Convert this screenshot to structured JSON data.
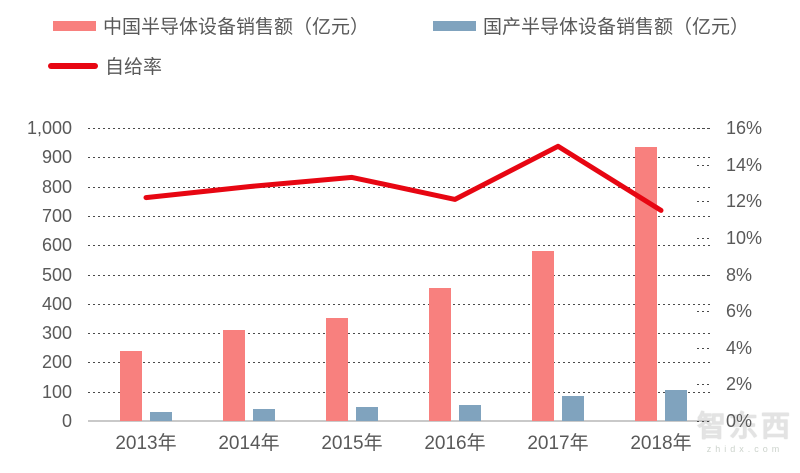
{
  "legend": {
    "position": "top-left",
    "items": [
      {
        "label": "中国半导体设备销售额（亿元）",
        "color": "#F8807E",
        "type": "bar"
      },
      {
        "label": "国产半导体设备销售额（亿元）",
        "color": "#80A3BE",
        "type": "bar"
      },
      {
        "label": "自给率",
        "color": "#E70612",
        "type": "line"
      }
    ]
  },
  "chart_data": {
    "type": "bar",
    "subtype": "grouped bars with overlaid line, dual y-axes",
    "categories": [
      "2013年",
      "2014年",
      "2015年",
      "2016年",
      "2017年",
      "2018年"
    ],
    "series": [
      {
        "name": "中国半导体设备销售额（亿元）",
        "type": "bar",
        "axis": "left",
        "color": "#F8807E",
        "values": [
          240,
          310,
          350,
          455,
          580,
          935
        ]
      },
      {
        "name": "国产半导体设备销售额（亿元）",
        "type": "bar",
        "axis": "left",
        "color": "#80A3BE",
        "values": [
          30,
          40,
          47,
          55,
          87,
          107
        ]
      },
      {
        "name": "自给率",
        "type": "line",
        "axis": "right",
        "color": "#E70612",
        "values": [
          12.2,
          12.8,
          13.3,
          12.1,
          15.0,
          11.5
        ],
        "unit": "%"
      }
    ],
    "left_axis": {
      "min": 0,
      "max": 1000,
      "step": 100,
      "tick_labels": [
        "0",
        "100",
        "200",
        "300",
        "400",
        "500",
        "600",
        "700",
        "800",
        "900",
        "1,000"
      ]
    },
    "right_axis": {
      "min": 0,
      "max": 16,
      "step": 2,
      "tick_labels": [
        "0%",
        "2%",
        "4%",
        "6%",
        "8%",
        "10%",
        "12%",
        "14%",
        "16%"
      ]
    },
    "grid": "horizontal dashed dark-gray, solid light baseline",
    "title": "",
    "xlabel": "",
    "ylabel": ""
  },
  "watermark": {
    "logo": "智东西",
    "domain": "zhidx.com"
  }
}
